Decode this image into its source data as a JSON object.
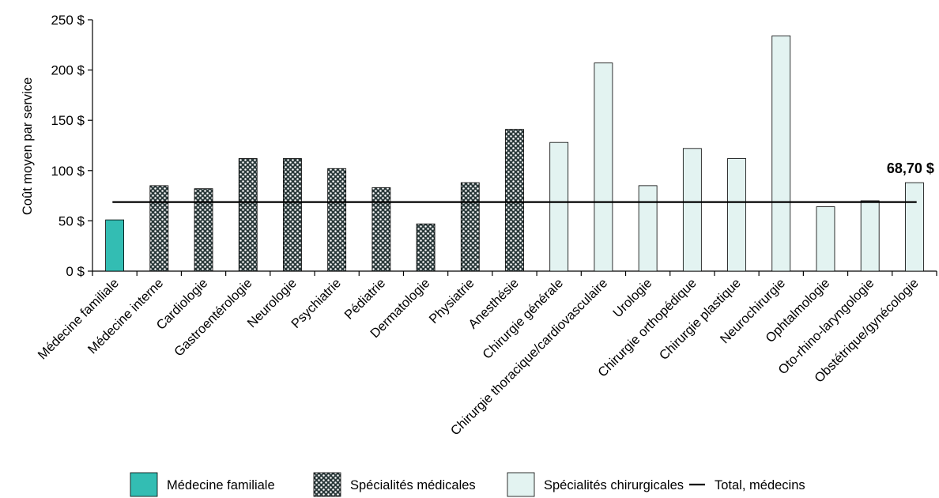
{
  "chart_data": {
    "type": "bar",
    "ylabel": "Coût moyen par service",
    "ylim": [
      0,
      250
    ],
    "yticks": [
      0,
      50,
      100,
      150,
      200,
      250
    ],
    "ytick_labels": [
      "0 $",
      "50 $",
      "100 $",
      "150 $",
      "200 $",
      "250 $"
    ],
    "grid": false,
    "categories": [
      "Médecine familiale",
      "Médecine interne",
      "Cardiologie",
      "Gastroentérologie",
      "Neurologie",
      "Psychiatrie",
      "Pédiatrie",
      "Dermatologie",
      "Physiatrie",
      "Anesthésie",
      "Chirurgie générale",
      "Chirurgie thoracique/cardiovasculaire",
      "Urologie",
      "Chirurgie orthopédique",
      "Chirurgie plastique",
      "Neurochirurgie",
      "Ophtalmologie",
      "Oto-rhino-laryngologie",
      "Obstétrique/gynécologie"
    ],
    "values": [
      51,
      85,
      82,
      112,
      112,
      102,
      83,
      47,
      88,
      141,
      128,
      207,
      85,
      122,
      112,
      234,
      64,
      70,
      88
    ],
    "groups": [
      "family",
      "medical",
      "medical",
      "medical",
      "medical",
      "medical",
      "medical",
      "medical",
      "medical",
      "medical",
      "surgical",
      "surgical",
      "surgical",
      "surgical",
      "surgical",
      "surgical",
      "surgical",
      "surgical",
      "surgical"
    ],
    "total_line": {
      "name": "Total, médecins",
      "value": 68.7,
      "label": "68,70 $"
    },
    "legend": {
      "placement": "bottom",
      "items": [
        {
          "key": "family",
          "label": "Médecine familiale",
          "color": "#33BDB3",
          "pattern": "solid"
        },
        {
          "key": "medical",
          "label": "Spécialités médicales",
          "color": "#2B3A3B",
          "pattern": "dots"
        },
        {
          "key": "surgical",
          "label": "Spécialités chirurgicales",
          "color": "#E3F3F1",
          "pattern": "solid"
        },
        {
          "key": "total",
          "label": "Total, médecins",
          "color": "#000000",
          "pattern": "line"
        }
      ]
    }
  }
}
